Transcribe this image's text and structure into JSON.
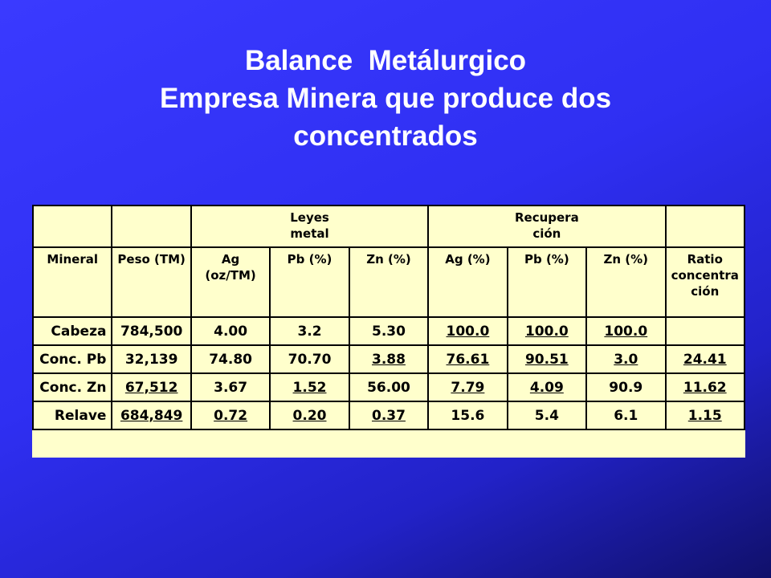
{
  "title": {
    "lines": [
      "Balance  Metálurgico",
      "Empresa Minera que produce dos",
      "concentrados"
    ]
  },
  "table": {
    "group_headers": {
      "leyes": "Leyes\nmetal",
      "recuperacion": "Recupera\nción"
    },
    "header": [
      "Mineral",
      "Peso (TM)",
      "Ag\n(oz/TM)",
      "Pb (%)",
      "Zn (%)",
      "Ag (%)",
      "Pb (%)",
      "Zn (%)",
      "Ratio\nconcentra\nción"
    ],
    "rows": [
      [
        "Cabeza",
        "784,500",
        "4.00",
        "3.2",
        "5.30",
        "100.0",
        "100.0",
        "100.0"
      ],
      [
        "Conc. Pb",
        "32,139",
        "74.80",
        "70.70",
        "3.88",
        "76.61",
        "90.51",
        "3.0",
        "24.41"
      ],
      [
        "Conc. Zn",
        "67,512",
        "3.67",
        "1.52",
        "56.00",
        "7.79",
        "4.09",
        "90.9",
        "11.62"
      ],
      [
        "Relave",
        "684,849",
        "0.72",
        "0.20",
        "0.37",
        "15.6",
        "5.4",
        "6.1",
        "1.15"
      ]
    ]
  }
}
